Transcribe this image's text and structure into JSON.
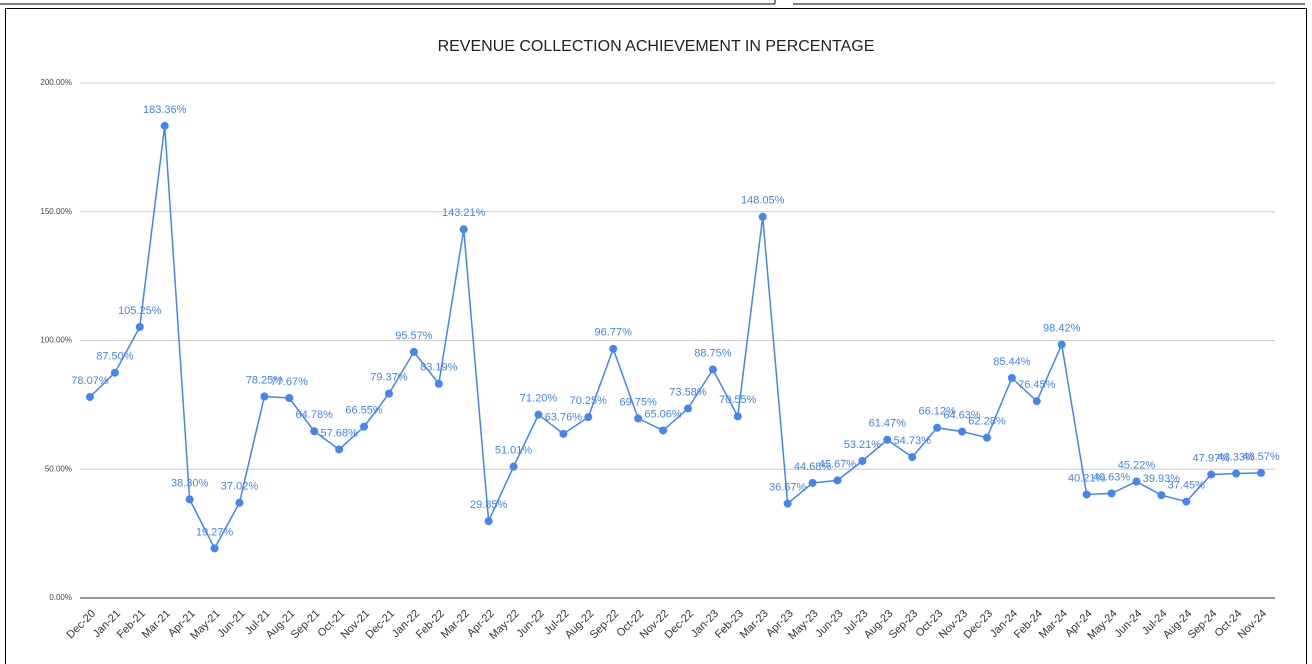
{
  "chart_data": {
    "type": "line",
    "title": "REVENUE COLLECTION ACHIEVEMENT IN PERCENTAGE",
    "categories": [
      "Dec-20",
      "Jan-21",
      "Feb-21",
      "Mar-21",
      "Apr-21",
      "May-21",
      "Jun-21",
      "Jul-21",
      "Aug-21",
      "Sep-21",
      "Oct-21",
      "Nov-21",
      "Dec-21",
      "Jan-22",
      "Feb-22",
      "Mar-22",
      "Apr-22",
      "May-22",
      "Jun-22",
      "Jul-22",
      "Aug-22",
      "Sep-22",
      "Oct-22",
      "Nov-22",
      "Dec-22",
      "Jan-23",
      "Feb-23",
      "Mar-23",
      "Apr-23",
      "May-23",
      "Jun-23",
      "Jul-23",
      "Aug-23",
      "Sep-23",
      "Oct-23",
      "Nov-23",
      "Dec-23",
      "Jan-24",
      "Feb-24",
      "Mar-24",
      "Apr-24",
      "May-24",
      "Jun-24",
      "Jul-24",
      "Aug-24",
      "Sep-24",
      "Oct-24",
      "Nov-24"
    ],
    "values": [
      78.07,
      87.5,
      105.25,
      183.36,
      38.3,
      19.27,
      37.02,
      78.25,
      77.67,
      64.78,
      57.68,
      66.55,
      79.37,
      95.57,
      83.19,
      143.21,
      29.85,
      51.01,
      71.2,
      63.76,
      70.25,
      96.77,
      69.75,
      65.06,
      73.58,
      88.75,
      70.55,
      148.05,
      36.67,
      44.68,
      45.67,
      53.21,
      61.47,
      54.73,
      66.12,
      64.63,
      62.28,
      85.44,
      76.45,
      98.42,
      40.21,
      40.63,
      45.22,
      39.93,
      37.45,
      47.97,
      48.33,
      48.57
    ],
    "value_labels": [
      "78.07%",
      "87.50%",
      "105.25%",
      "183.36%",
      "38.30%",
      "19.27%",
      "37.02%",
      "78.25%",
      "77.67%",
      "64.78%",
      "57.68%",
      "66.55%",
      "79.37%",
      "95.57%",
      "83.19%",
      "143.21%",
      "29.85%",
      "51.01%",
      "71.20%",
      "63.76%",
      "70.25%",
      "96.77%",
      "69.75%",
      "65.06%",
      "73.58%",
      "88.75%",
      "70.55%",
      "148.05%",
      "36.67%",
      "44.68%",
      "45.67%",
      "53.21%",
      "61.47%",
      "54.73%",
      "66.12%",
      "64.63%",
      "62.28%",
      "85.44%",
      "76.45%",
      "98.42%",
      "40.21%",
      "40.63%",
      "45.22%",
      "39.93%",
      "37.45%",
      "47.97%",
      "48.33%",
      "48.57%"
    ],
    "color": "#4285f4",
    "ylim": [
      0,
      200
    ],
    "yticks": [
      {
        "value": 0,
        "label": "0.00%"
      },
      {
        "value": 50,
        "label": "50.00%"
      },
      {
        "value": 100,
        "label": "100.00%"
      },
      {
        "value": 150,
        "label": "150.00%"
      },
      {
        "value": 200,
        "label": "200.00%"
      }
    ],
    "grid": true
  }
}
